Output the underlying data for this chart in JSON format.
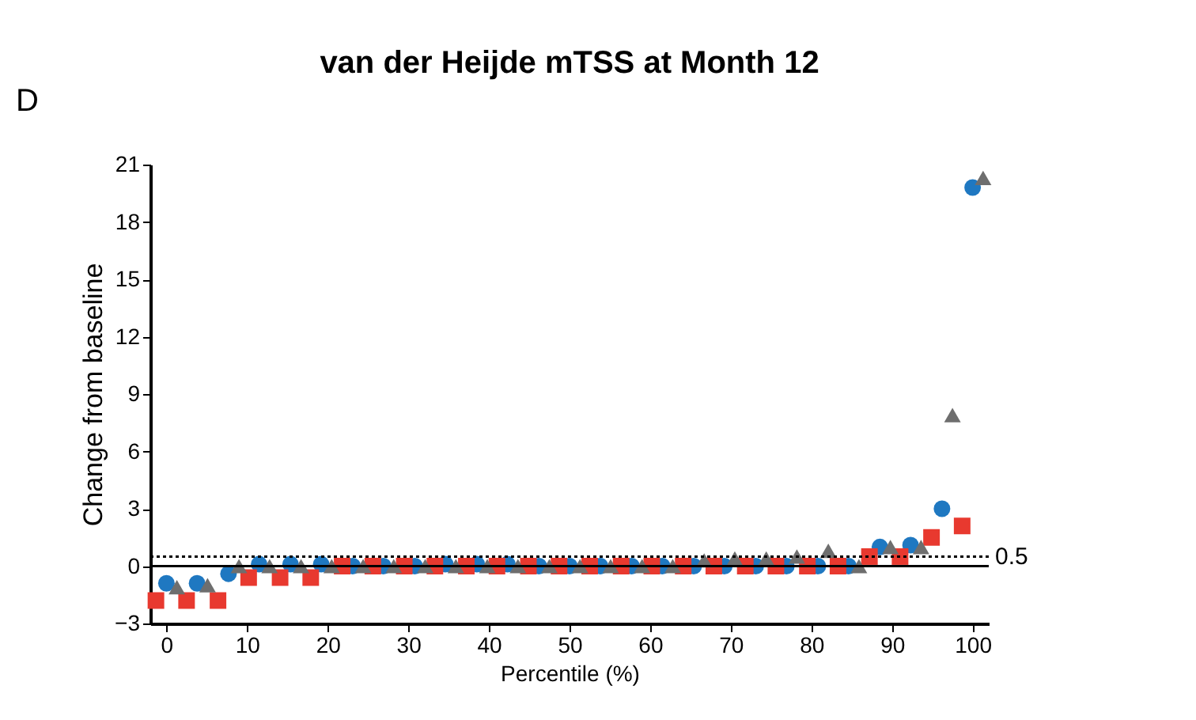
{
  "chart_data": {
    "type": "scatter",
    "title": "van der Heijde mTSS at Month 12",
    "xlabel": "Percentile (%)",
    "ylabel": "Change from baseline",
    "annotations": [
      "D"
    ],
    "x": [
      0,
      3.8,
      7.7,
      11.5,
      15.4,
      19.2,
      23.1,
      26.9,
      30.8,
      34.6,
      38.5,
      42.3,
      46.2,
      50,
      53.8,
      57.7,
      61.5,
      65.4,
      69.2,
      73.1,
      76.9,
      80.8,
      84.6,
      88.5,
      92.3,
      96.2,
      100
    ],
    "series": [
      {
        "color": "#1f78c1",
        "marker": "circle",
        "values": [
          -0.9,
          -0.9,
          -0.4,
          0.1,
          0.1,
          0.1,
          0,
          0,
          0,
          0.1,
          0.1,
          0.1,
          0,
          0,
          0,
          0,
          0,
          0,
          0,
          0,
          0,
          0,
          0,
          1.0,
          1.1,
          3.0,
          19.8
        ]
      },
      {
        "color": "#e8392f",
        "marker": "square",
        "x": [
          -1.3,
          2.5,
          6.4,
          10.2,
          14.1,
          17.9,
          21.8,
          25.6,
          29.5,
          33.3,
          37.2,
          41,
          44.9,
          48.7,
          52.5,
          56.4,
          60.2,
          64.1,
          67.9,
          71.8,
          75.6,
          79.5,
          83.3,
          87.2,
          91,
          94.9,
          98.7
        ],
        "values": [
          -1.8,
          -1.8,
          -1.8,
          -0.6,
          -0.6,
          -0.6,
          0,
          0,
          0,
          0,
          0,
          0,
          0,
          0,
          0,
          0,
          0,
          0,
          0,
          0,
          0,
          0,
          0,
          0.5,
          0.5,
          1.5,
          2.1
        ]
      },
      {
        "color": "#6e6e6e",
        "marker": "triangle",
        "x": [
          1.3,
          5.1,
          9,
          12.8,
          16.7,
          20.5,
          24.4,
          28.2,
          32.1,
          35.9,
          39.8,
          43.6,
          47.5,
          51.3,
          55.1,
          59,
          62.8,
          66.7,
          70.5,
          74.4,
          78.2,
          82.1,
          85.9,
          89.8,
          93.6,
          97.5,
          101.3
        ],
        "values": [
          -1.1,
          -1.0,
          0,
          0,
          0,
          0,
          0,
          0,
          0,
          0,
          0,
          0,
          0,
          0,
          0,
          0,
          0,
          0.3,
          0.4,
          0.4,
          0.5,
          0.8,
          0,
          1.0,
          1.0,
          7.9,
          20.3
        ]
      }
    ],
    "xlim": [
      -2,
      102
    ],
    "xticks": [
      0,
      10,
      20,
      30,
      40,
      50,
      60,
      70,
      80,
      90,
      100
    ],
    "ylim": [
      -3,
      21
    ],
    "yticks": [
      -3,
      0,
      3,
      6,
      9,
      12,
      15,
      18,
      21
    ],
    "ref_lines": [
      {
        "axis": "y",
        "value": 0,
        "label": null,
        "line_style": "solid",
        "color": "#000000"
      },
      {
        "axis": "y",
        "value": 0.5,
        "label": "0.5",
        "line_style": "dotted",
        "color": "#000000"
      }
    ],
    "grid": false,
    "legend": false
  }
}
